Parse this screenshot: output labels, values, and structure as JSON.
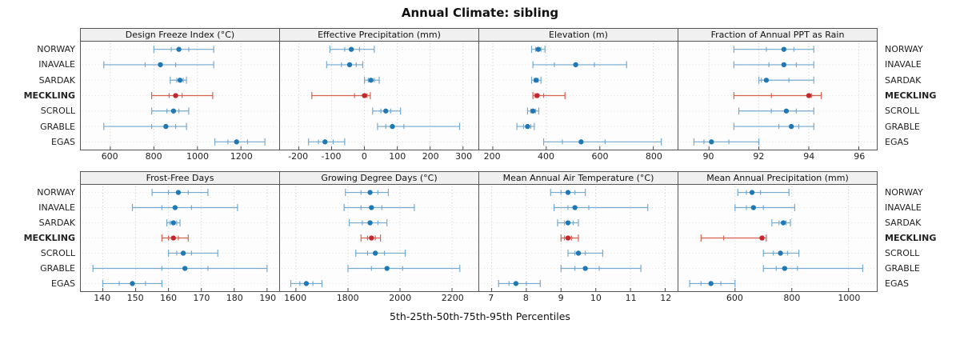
{
  "title": "Annual Climate: sibling",
  "caption": "5th-25th-50th-75th-95th Percentiles",
  "colors": {
    "normal_line": "#74a9cf",
    "normal_dot": "#1f78b4",
    "highlight_line": "#d6604d",
    "highlight_dot": "#c1272d",
    "strip_bg": "#f0f0f0",
    "border": "#555555",
    "grid_v": "#c9c9c9",
    "grid_h": "#e4e4e4",
    "tick": "#444444"
  },
  "chart_data": {
    "type": "dot-whisker",
    "stations": [
      "NORWAY",
      "INAVALE",
      "SARDAK",
      "MECKLING",
      "SCROLL",
      "GRABLE",
      "EGAS"
    ],
    "highlight": "MECKLING",
    "percentile_labels": [
      "p5",
      "p25",
      "p50",
      "p75",
      "p95"
    ],
    "legend_position": "none",
    "grid": true,
    "panels": [
      {
        "title": "Design Freeze Index (°C)",
        "row": 0,
        "xlim": [
          490,
          1350
        ],
        "ticks": [
          600,
          800,
          1000,
          1200
        ],
        "values": {
          "NORWAY": [
            800,
            880,
            915,
            960,
            1075
          ],
          "INAVALE": [
            570,
            760,
            830,
            900,
            1075
          ],
          "SARDAK": [
            875,
            905,
            920,
            935,
            950
          ],
          "MECKLING": [
            790,
            870,
            900,
            930,
            1070
          ],
          "SCROLL": [
            790,
            860,
            890,
            915,
            960
          ],
          "GRABLE": [
            570,
            790,
            855,
            900,
            950
          ],
          "EGAS": [
            1080,
            1140,
            1180,
            1230,
            1310
          ]
        }
      },
      {
        "title": "Effective Precipitation (mm)",
        "row": 0,
        "xlim": [
          -240,
          330
        ],
        "ticks": [
          -200,
          -100,
          0,
          100,
          200,
          300
        ],
        "values": {
          "NORWAY": [
            -105,
            -60,
            -40,
            -15,
            30
          ],
          "INAVALE": [
            -115,
            -70,
            -45,
            -25,
            -5
          ],
          "SARDAK": [
            0,
            12,
            20,
            30,
            45
          ],
          "MECKLING": [
            -160,
            -30,
            0,
            8,
            18
          ],
          "SCROLL": [
            25,
            50,
            65,
            80,
            110
          ],
          "GRABLE": [
            40,
            65,
            85,
            120,
            290
          ],
          "EGAS": [
            -170,
            -140,
            -120,
            -95,
            -60
          ]
        }
      },
      {
        "title": "Elevation (m)",
        "row": 0,
        "xlim": [
          170,
          870
        ],
        "ticks": [
          200,
          400,
          600,
          800
        ],
        "values": {
          "NORWAY": [
            345,
            360,
            370,
            380,
            395
          ],
          "INAVALE": [
            350,
            430,
            510,
            580,
            700
          ],
          "SARDAK": [
            345,
            355,
            362,
            370,
            380
          ],
          "MECKLING": [
            350,
            358,
            366,
            390,
            470
          ],
          "SCROLL": [
            330,
            342,
            350,
            360,
            372
          ],
          "GRABLE": [
            290,
            315,
            330,
            342,
            355
          ],
          "EGAS": [
            390,
            460,
            530,
            620,
            830
          ]
        }
      },
      {
        "title": "Fraction of Annual PPT as Rain",
        "row": 0,
        "xlim": [
          89,
          96.5
        ],
        "ticks": [
          90,
          92,
          94,
          96
        ],
        "values": {
          "NORWAY": [
            91.0,
            92.3,
            93.0,
            93.4,
            94.2
          ],
          "INAVALE": [
            91.0,
            92.4,
            93.0,
            93.5,
            94.2
          ],
          "SARDAK": [
            92.0,
            92.1,
            92.3,
            93.2,
            94.2
          ],
          "MECKLING": [
            91.0,
            92.5,
            94.0,
            94.1,
            94.5
          ],
          "SCROLL": [
            91.2,
            92.5,
            93.1,
            93.5,
            94.2
          ],
          "GRABLE": [
            91.0,
            92.8,
            93.3,
            93.6,
            94.2
          ],
          "EGAS": [
            89.4,
            89.8,
            90.1,
            90.8,
            92.0
          ]
        }
      },
      {
        "title": "Frost-Free Days",
        "row": 1,
        "xlim": [
          135,
          192
        ],
        "ticks": [
          140,
          150,
          160,
          170,
          180,
          190
        ],
        "values": {
          "NORWAY": [
            155,
            160,
            163,
            166,
            172
          ],
          "INAVALE": [
            149,
            158,
            162,
            167,
            181
          ],
          "SARDAK": [
            159.5,
            160.5,
            161.5,
            162.5,
            163.5
          ],
          "MECKLING": [
            158,
            160,
            161.5,
            163,
            166
          ],
          "SCROLL": [
            160,
            162.5,
            164.5,
            167,
            175
          ],
          "GRABLE": [
            137,
            158,
            165,
            172,
            190
          ],
          "EGAS": [
            140,
            145,
            149,
            153,
            158
          ]
        }
      },
      {
        "title": "Growing Degree Days (°C)",
        "row": 1,
        "xlim": [
          1560,
          2280
        ],
        "ticks": [
          1600,
          1800,
          2000,
          2200
        ],
        "values": {
          "NORWAY": [
            1790,
            1850,
            1885,
            1915,
            1955
          ],
          "INAVALE": [
            1785,
            1850,
            1890,
            1930,
            2055
          ],
          "SARDAK": [
            1805,
            1855,
            1885,
            1915,
            1950
          ],
          "MECKLING": [
            1850,
            1875,
            1890,
            1905,
            1925
          ],
          "SCROLL": [
            1830,
            1875,
            1905,
            1940,
            2020
          ],
          "GRABLE": [
            1800,
            1890,
            1950,
            2010,
            2230
          ],
          "EGAS": [
            1580,
            1615,
            1640,
            1665,
            1700
          ]
        }
      },
      {
        "title": "Mean Annual Air Temperature (°C)",
        "row": 1,
        "xlim": [
          6.8,
          12.2
        ],
        "ticks": [
          7,
          8,
          9,
          10,
          11,
          12
        ],
        "values": {
          "NORWAY": [
            8.7,
            9.0,
            9.2,
            9.4,
            9.7
          ],
          "INAVALE": [
            8.8,
            9.2,
            9.4,
            9.8,
            11.5
          ],
          "SARDAK": [
            8.9,
            9.1,
            9.2,
            9.35,
            9.5
          ],
          "MECKLING": [
            9.0,
            9.1,
            9.2,
            9.3,
            9.5
          ],
          "SCROLL": [
            9.2,
            9.4,
            9.5,
            9.7,
            10.2
          ],
          "GRABLE": [
            9.0,
            9.4,
            9.7,
            10.1,
            11.3
          ],
          "EGAS": [
            7.2,
            7.5,
            7.7,
            8.0,
            8.4
          ]
        }
      },
      {
        "title": "Mean Annual Precipitation (mm)",
        "row": 1,
        "xlim": [
          420,
          1080
        ],
        "ticks": [
          600,
          800,
          1000
        ],
        "values": {
          "NORWAY": [
            610,
            640,
            660,
            690,
            790
          ],
          "INAVALE": [
            600,
            640,
            665,
            700,
            810
          ],
          "SARDAK": [
            730,
            755,
            770,
            780,
            795
          ],
          "MECKLING": [
            480,
            560,
            695,
            700,
            710
          ],
          "SCROLL": [
            700,
            735,
            760,
            785,
            825
          ],
          "GRABLE": [
            700,
            745,
            775,
            820,
            1050
          ],
          "EGAS": [
            440,
            480,
            515,
            550,
            600
          ]
        }
      }
    ]
  }
}
